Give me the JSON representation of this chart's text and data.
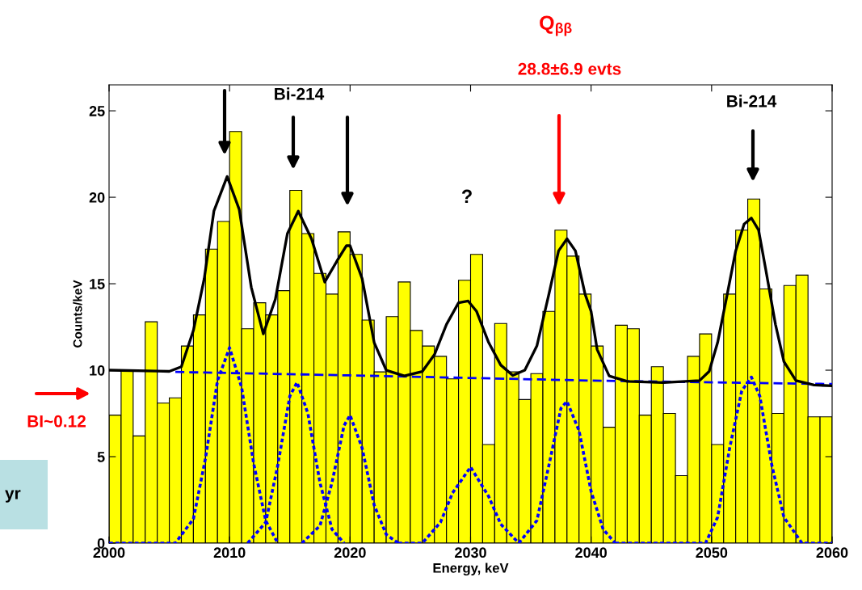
{
  "chart_data": {
    "type": "histogram",
    "xlabel": "Energy, keV",
    "ylabel": "Counts/keV",
    "bins": [
      2000,
      2001,
      2002,
      2003,
      2004,
      2005,
      2006,
      2007,
      2008,
      2009,
      2010,
      2011,
      2012,
      2013,
      2014,
      2015,
      2016,
      2017,
      2018,
      2019,
      2020,
      2021,
      2022,
      2023,
      2024,
      2025,
      2026,
      2027,
      2028,
      2029,
      2030,
      2031,
      2032,
      2033,
      2034,
      2035,
      2036,
      2037,
      2038,
      2039,
      2040,
      2041,
      2042,
      2043,
      2044,
      2045,
      2046,
      2047,
      2048,
      2049,
      2050,
      2051,
      2052,
      2053,
      2054,
      2055,
      2056,
      2057,
      2058,
      2059,
      2060
    ],
    "values": [
      7.4,
      10.0,
      6.2,
      12.8,
      8.1,
      8.4,
      11.4,
      13.2,
      17.0,
      18.6,
      23.8,
      12.4,
      13.9,
      13.2,
      14.6,
      20.4,
      17.9,
      15.6,
      14.4,
      18.0,
      16.7,
      12.9,
      9.9,
      13.1,
      15.1,
      12.3,
      11.4,
      10.8,
      9.5,
      15.2,
      16.7,
      5.7,
      12.7,
      9.9,
      8.3,
      9.8,
      13.4,
      18.1,
      16.6,
      14.4,
      11.4,
      6.7,
      12.6,
      12.4,
      7.4,
      10.2,
      7.5,
      3.9,
      10.8,
      12.1,
      5.7,
      14.4,
      18.1,
      19.9,
      14.7,
      7.5,
      14.9,
      15.5,
      7.3,
      7.3
    ],
    "color": "#ffff00",
    "series": [
      {
        "type": "line",
        "color": "#000000",
        "line_style": "solid",
        "x": [
          2000,
          2004,
          2005,
          2006,
          2007,
          2007.9,
          2008.7,
          2009.8,
          2010.8,
          2011.8,
          2012.8,
          2013.8,
          2014.8,
          2015.7,
          2016.8,
          2017.9,
          2018.9,
          2019.7,
          2020,
          2021,
          2022,
          2023,
          2024.5,
          2026,
          2027,
          2028,
          2029,
          2029.8,
          2030.5,
          2031.5,
          2032.5,
          2033.5,
          2034.5,
          2035.5,
          2036.5,
          2037.3,
          2038,
          2038.7,
          2039.5,
          2040,
          2040.5,
          2041.5,
          2043,
          2046,
          2049,
          2049.8,
          2050.5,
          2051.3,
          2052,
          2052.7,
          2053.3,
          2053.9,
          2054.5,
          2055.3,
          2056,
          2057,
          2058.5,
          2060
        ],
        "values": [
          10.0,
          9.95,
          9.93,
          10.2,
          12.3,
          15.3,
          19.2,
          21.2,
          19.3,
          14.8,
          12.1,
          14.1,
          17.9,
          19.2,
          17.6,
          15.1,
          16.3,
          17.2,
          17.2,
          15.3,
          11.6,
          10.0,
          9.67,
          9.93,
          10.9,
          12.65,
          13.9,
          14.0,
          13.4,
          11.6,
          10.3,
          9.7,
          10.0,
          11.4,
          14.4,
          16.9,
          17.6,
          16.9,
          14.4,
          13.4,
          11.2,
          9.67,
          9.35,
          9.28,
          9.4,
          9.93,
          11.6,
          14.4,
          16.9,
          18.45,
          18.8,
          18.1,
          15.8,
          12.65,
          10.5,
          9.4,
          9.14,
          9.1
        ]
      },
      {
        "type": "line",
        "color": "#0000ff",
        "line_style": "dashed",
        "x": [
          2005.5,
          2020,
          2040,
          2060
        ],
        "values": [
          9.9,
          9.7,
          9.4,
          9.2
        ]
      },
      {
        "type": "line",
        "color": "#0000ff",
        "line_style": "dotted",
        "x": [
          2000,
          2005.5,
          2007,
          2008,
          2009,
          2010,
          2011,
          2012,
          2013,
          2014
        ],
        "values": [
          0,
          0,
          1.4,
          4.9,
          9.4,
          11.3,
          9.0,
          4.6,
          1.3,
          0
        ]
      },
      {
        "type": "line",
        "color": "#0000ff",
        "line_style": "dotted",
        "x": [
          2011.5,
          2013,
          2014,
          2015,
          2015.6,
          2016.5,
          2017.5,
          2018.5,
          2019.5
        ],
        "values": [
          0,
          1.2,
          4.5,
          8.5,
          9.3,
          7.5,
          3.5,
          0.8,
          0
        ]
      },
      {
        "type": "line",
        "color": "#0000ff",
        "line_style": "dotted",
        "x": [
          2016,
          2017.5,
          2018.5,
          2019.5,
          2020,
          2021,
          2022,
          2023,
          2024
        ],
        "values": [
          0,
          1.0,
          3.5,
          6.8,
          7.4,
          5.5,
          2.2,
          0.5,
          0
        ]
      },
      {
        "type": "line",
        "color": "#0000ff",
        "line_style": "dotted",
        "x": [
          2024,
          2026,
          2027.5,
          2028.5,
          2030,
          2031.5,
          2032.5,
          2034
        ],
        "values": [
          0,
          0,
          1.2,
          2.9,
          4.4,
          2.7,
          1.1,
          0
        ]
      },
      {
        "type": "line",
        "color": "#0000ff",
        "line_style": "dotted",
        "x": [
          2034,
          2035.5,
          2036.5,
          2037.5,
          2038,
          2039,
          2040,
          2041,
          2042
        ],
        "values": [
          0,
          1.3,
          4.5,
          7.8,
          8.2,
          6.5,
          3.0,
          0.8,
          0
        ]
      },
      {
        "type": "line",
        "color": "#0000ff",
        "line_style": "dotted",
        "x": [
          2042,
          2049.5,
          2050.5,
          2051.5,
          2052.5,
          2053.3,
          2054,
          2055,
          2056,
          2057.5,
          2060
        ],
        "values": [
          0,
          0,
          1.5,
          5.5,
          8.8,
          9.6,
          8.5,
          4.5,
          1.5,
          0,
          0
        ]
      }
    ],
    "xlim": [
      2000,
      2060
    ],
    "xticks": [
      2000,
      2010,
      2020,
      2030,
      2040,
      2050,
      2060
    ],
    "ylim": [
      0,
      26.5
    ],
    "yticks": [
      0,
      5,
      10,
      15,
      20,
      25
    ],
    "grid": false,
    "legend": false,
    "annotations": [
      "Bi-214",
      "Bi-214",
      "?",
      "Q$_{ββ}$",
      "28.8±6.9 evts",
      "BI~0.12",
      "yr"
    ]
  }
}
